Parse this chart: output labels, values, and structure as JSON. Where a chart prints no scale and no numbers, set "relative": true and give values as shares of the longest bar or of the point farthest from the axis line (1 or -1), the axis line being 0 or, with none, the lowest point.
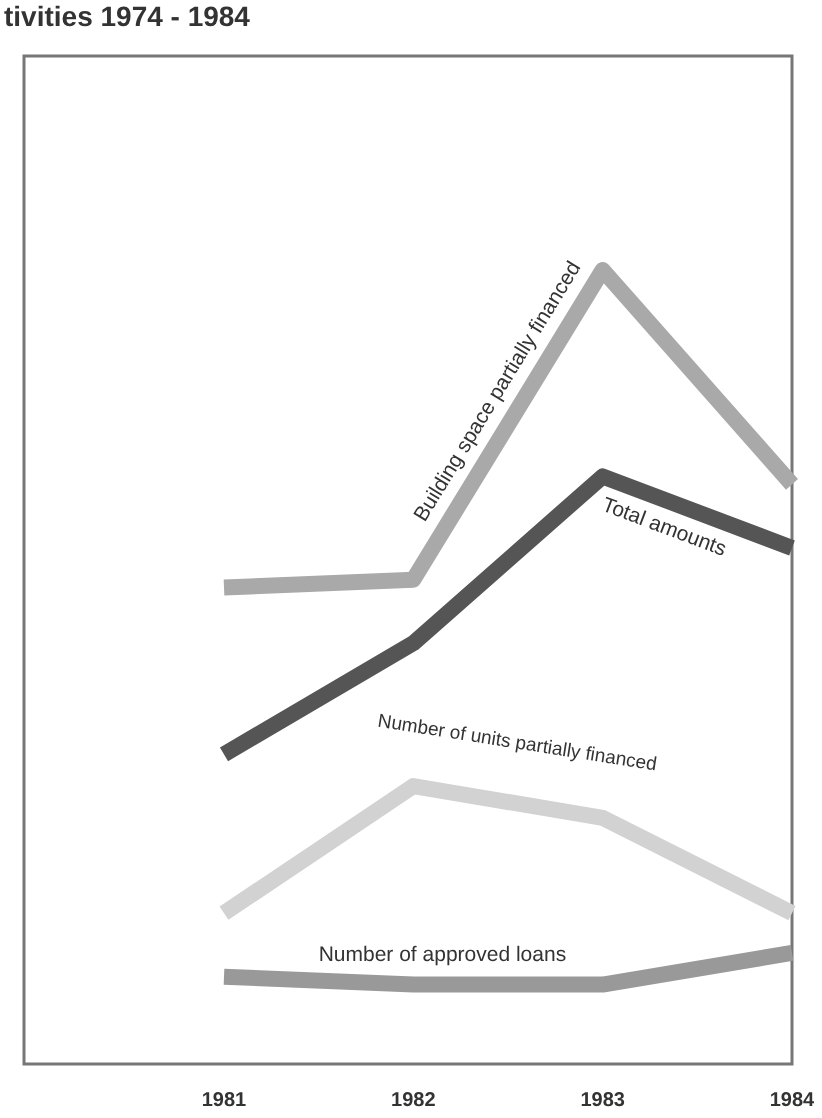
{
  "chart_data": {
    "type": "line",
    "title": "tivities 1974 - 1984",
    "relative": true,
    "categories": [
      "1981",
      "1982",
      "1983",
      "1984"
    ],
    "series": [
      {
        "name": "Building space partially financed",
        "color": "#a9a9a9",
        "values": [
          0.6,
          0.61,
          1,
          0.73
        ]
      },
      {
        "name": "Total amounts",
        "color": "#555555",
        "values": [
          0.39,
          0.53,
          0.74,
          0.65
        ]
      },
      {
        "name": "Number of units partially financed",
        "color": "#d2d2d2",
        "values": [
          0.19,
          0.35,
          0.31,
          0.19
        ]
      },
      {
        "name": "Number of approved loans",
        "color": "#999999",
        "values": [
          0.11,
          0.1,
          0.1,
          0.14
        ]
      }
    ],
    "legend": false,
    "grid": false,
    "marker": "none",
    "line_style": "solid"
  }
}
